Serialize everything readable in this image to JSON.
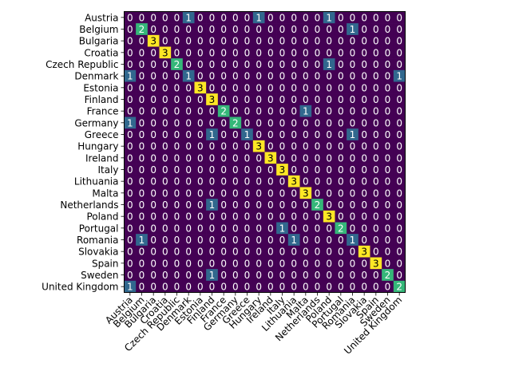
{
  "chart_data": {
    "type": "heatmap",
    "title": "",
    "xlabel": "",
    "ylabel": "",
    "colormap": "viridis",
    "vmin": 0,
    "vmax": 3,
    "row_labels": [
      "Austria",
      "Belgium",
      "Bulgaria",
      "Croatia",
      "Czech Republic",
      "Denmark",
      "Estonia",
      "Finland",
      "France",
      "Germany",
      "Greece",
      "Hungary",
      "Ireland",
      "Italy",
      "Lithuania",
      "Malta",
      "Netherlands",
      "Poland",
      "Portugal",
      "Romania ",
      "Slovakia",
      "Spain",
      "Sweden",
      "United Kingdom"
    ],
    "col_labels": [
      "Austria",
      "Belgium",
      "Bulgaria",
      "Croatia",
      "Czech Republic",
      "Denmark",
      "Estonia",
      "Finland",
      "France",
      "Germany",
      "Greece",
      "Hungary",
      "Ireland",
      "Italy",
      "Lithuania",
      "Malta",
      "Netherlands",
      "Poland",
      "Portugal",
      "Romania",
      "Slovakia",
      "Spain",
      "Sweden",
      "United Kingdom"
    ],
    "values": [
      [
        0,
        0,
        0,
        0,
        0,
        1,
        0,
        0,
        0,
        0,
        0,
        1,
        0,
        0,
        0,
        0,
        0,
        1,
        0,
        0,
        0,
        0,
        0,
        0
      ],
      [
        0,
        2,
        0,
        0,
        0,
        0,
        0,
        0,
        0,
        0,
        0,
        0,
        0,
        0,
        0,
        0,
        0,
        0,
        0,
        1,
        0,
        0,
        0,
        0
      ],
      [
        0,
        0,
        3,
        0,
        0,
        0,
        0,
        0,
        0,
        0,
        0,
        0,
        0,
        0,
        0,
        0,
        0,
        0,
        0,
        0,
        0,
        0,
        0,
        0
      ],
      [
        0,
        0,
        0,
        3,
        0,
        0,
        0,
        0,
        0,
        0,
        0,
        0,
        0,
        0,
        0,
        0,
        0,
        0,
        0,
        0,
        0,
        0,
        0,
        0
      ],
      [
        0,
        0,
        0,
        0,
        2,
        0,
        0,
        0,
        0,
        0,
        0,
        0,
        0,
        0,
        0,
        0,
        0,
        1,
        0,
        0,
        0,
        0,
        0,
        0
      ],
      [
        1,
        0,
        0,
        0,
        0,
        1,
        0,
        0,
        0,
        0,
        0,
        0,
        0,
        0,
        0,
        0,
        0,
        0,
        0,
        0,
        0,
        0,
        0,
        1
      ],
      [
        0,
        0,
        0,
        0,
        0,
        0,
        3,
        0,
        0,
        0,
        0,
        0,
        0,
        0,
        0,
        0,
        0,
        0,
        0,
        0,
        0,
        0,
        0,
        0
      ],
      [
        0,
        0,
        0,
        0,
        0,
        0,
        0,
        3,
        0,
        0,
        0,
        0,
        0,
        0,
        0,
        0,
        0,
        0,
        0,
        0,
        0,
        0,
        0,
        0
      ],
      [
        0,
        0,
        0,
        0,
        0,
        0,
        0,
        0,
        2,
        0,
        0,
        0,
        0,
        0,
        0,
        1,
        0,
        0,
        0,
        0,
        0,
        0,
        0,
        0
      ],
      [
        1,
        0,
        0,
        0,
        0,
        0,
        0,
        0,
        0,
        2,
        0,
        0,
        0,
        0,
        0,
        0,
        0,
        0,
        0,
        0,
        0,
        0,
        0,
        0
      ],
      [
        0,
        0,
        0,
        0,
        0,
        0,
        0,
        1,
        0,
        0,
        1,
        0,
        0,
        0,
        0,
        0,
        0,
        0,
        0,
        1,
        0,
        0,
        0,
        0
      ],
      [
        0,
        0,
        0,
        0,
        0,
        0,
        0,
        0,
        0,
        0,
        0,
        3,
        0,
        0,
        0,
        0,
        0,
        0,
        0,
        0,
        0,
        0,
        0,
        0
      ],
      [
        0,
        0,
        0,
        0,
        0,
        0,
        0,
        0,
        0,
        0,
        0,
        0,
        3,
        0,
        0,
        0,
        0,
        0,
        0,
        0,
        0,
        0,
        0,
        0
      ],
      [
        0,
        0,
        0,
        0,
        0,
        0,
        0,
        0,
        0,
        0,
        0,
        0,
        0,
        3,
        0,
        0,
        0,
        0,
        0,
        0,
        0,
        0,
        0,
        0
      ],
      [
        0,
        0,
        0,
        0,
        0,
        0,
        0,
        0,
        0,
        0,
        0,
        0,
        0,
        0,
        3,
        0,
        0,
        0,
        0,
        0,
        0,
        0,
        0,
        0
      ],
      [
        0,
        0,
        0,
        0,
        0,
        0,
        0,
        0,
        0,
        0,
        0,
        0,
        0,
        0,
        0,
        3,
        0,
        0,
        0,
        0,
        0,
        0,
        0,
        0
      ],
      [
        0,
        0,
        0,
        0,
        0,
        0,
        0,
        1,
        0,
        0,
        0,
        0,
        0,
        0,
        0,
        0,
        2,
        0,
        0,
        0,
        0,
        0,
        0,
        0
      ],
      [
        0,
        0,
        0,
        0,
        0,
        0,
        0,
        0,
        0,
        0,
        0,
        0,
        0,
        0,
        0,
        0,
        0,
        3,
        0,
        0,
        0,
        0,
        0,
        0
      ],
      [
        0,
        0,
        0,
        0,
        0,
        0,
        0,
        0,
        0,
        0,
        0,
        0,
        0,
        1,
        0,
        0,
        0,
        0,
        2,
        0,
        0,
        0,
        0,
        0
      ],
      [
        0,
        1,
        0,
        0,
        0,
        0,
        0,
        0,
        0,
        0,
        0,
        0,
        0,
        0,
        1,
        0,
        0,
        0,
        0,
        1,
        0,
        0,
        0,
        0
      ],
      [
        0,
        0,
        0,
        0,
        0,
        0,
        0,
        0,
        0,
        0,
        0,
        0,
        0,
        0,
        0,
        0,
        0,
        0,
        0,
        0,
        3,
        0,
        0,
        0
      ],
      [
        0,
        0,
        0,
        0,
        0,
        0,
        0,
        0,
        0,
        0,
        0,
        0,
        0,
        0,
        0,
        0,
        0,
        0,
        0,
        0,
        0,
        3,
        0,
        0
      ],
      [
        0,
        0,
        0,
        0,
        0,
        0,
        0,
        1,
        0,
        0,
        0,
        0,
        0,
        0,
        0,
        0,
        0,
        0,
        0,
        0,
        0,
        0,
        2,
        0
      ],
      [
        1,
        0,
        0,
        0,
        0,
        0,
        0,
        0,
        0,
        0,
        0,
        0,
        0,
        0,
        0,
        0,
        0,
        0,
        0,
        0,
        0,
        0,
        0,
        2
      ]
    ],
    "colors": {
      "0": "#440154",
      "1": "#31688e",
      "2": "#35b779",
      "3": "#fde725"
    },
    "text_color_dark": "#000000",
    "text_color_light": "#ffffff",
    "grid": false,
    "legend": "none"
  }
}
